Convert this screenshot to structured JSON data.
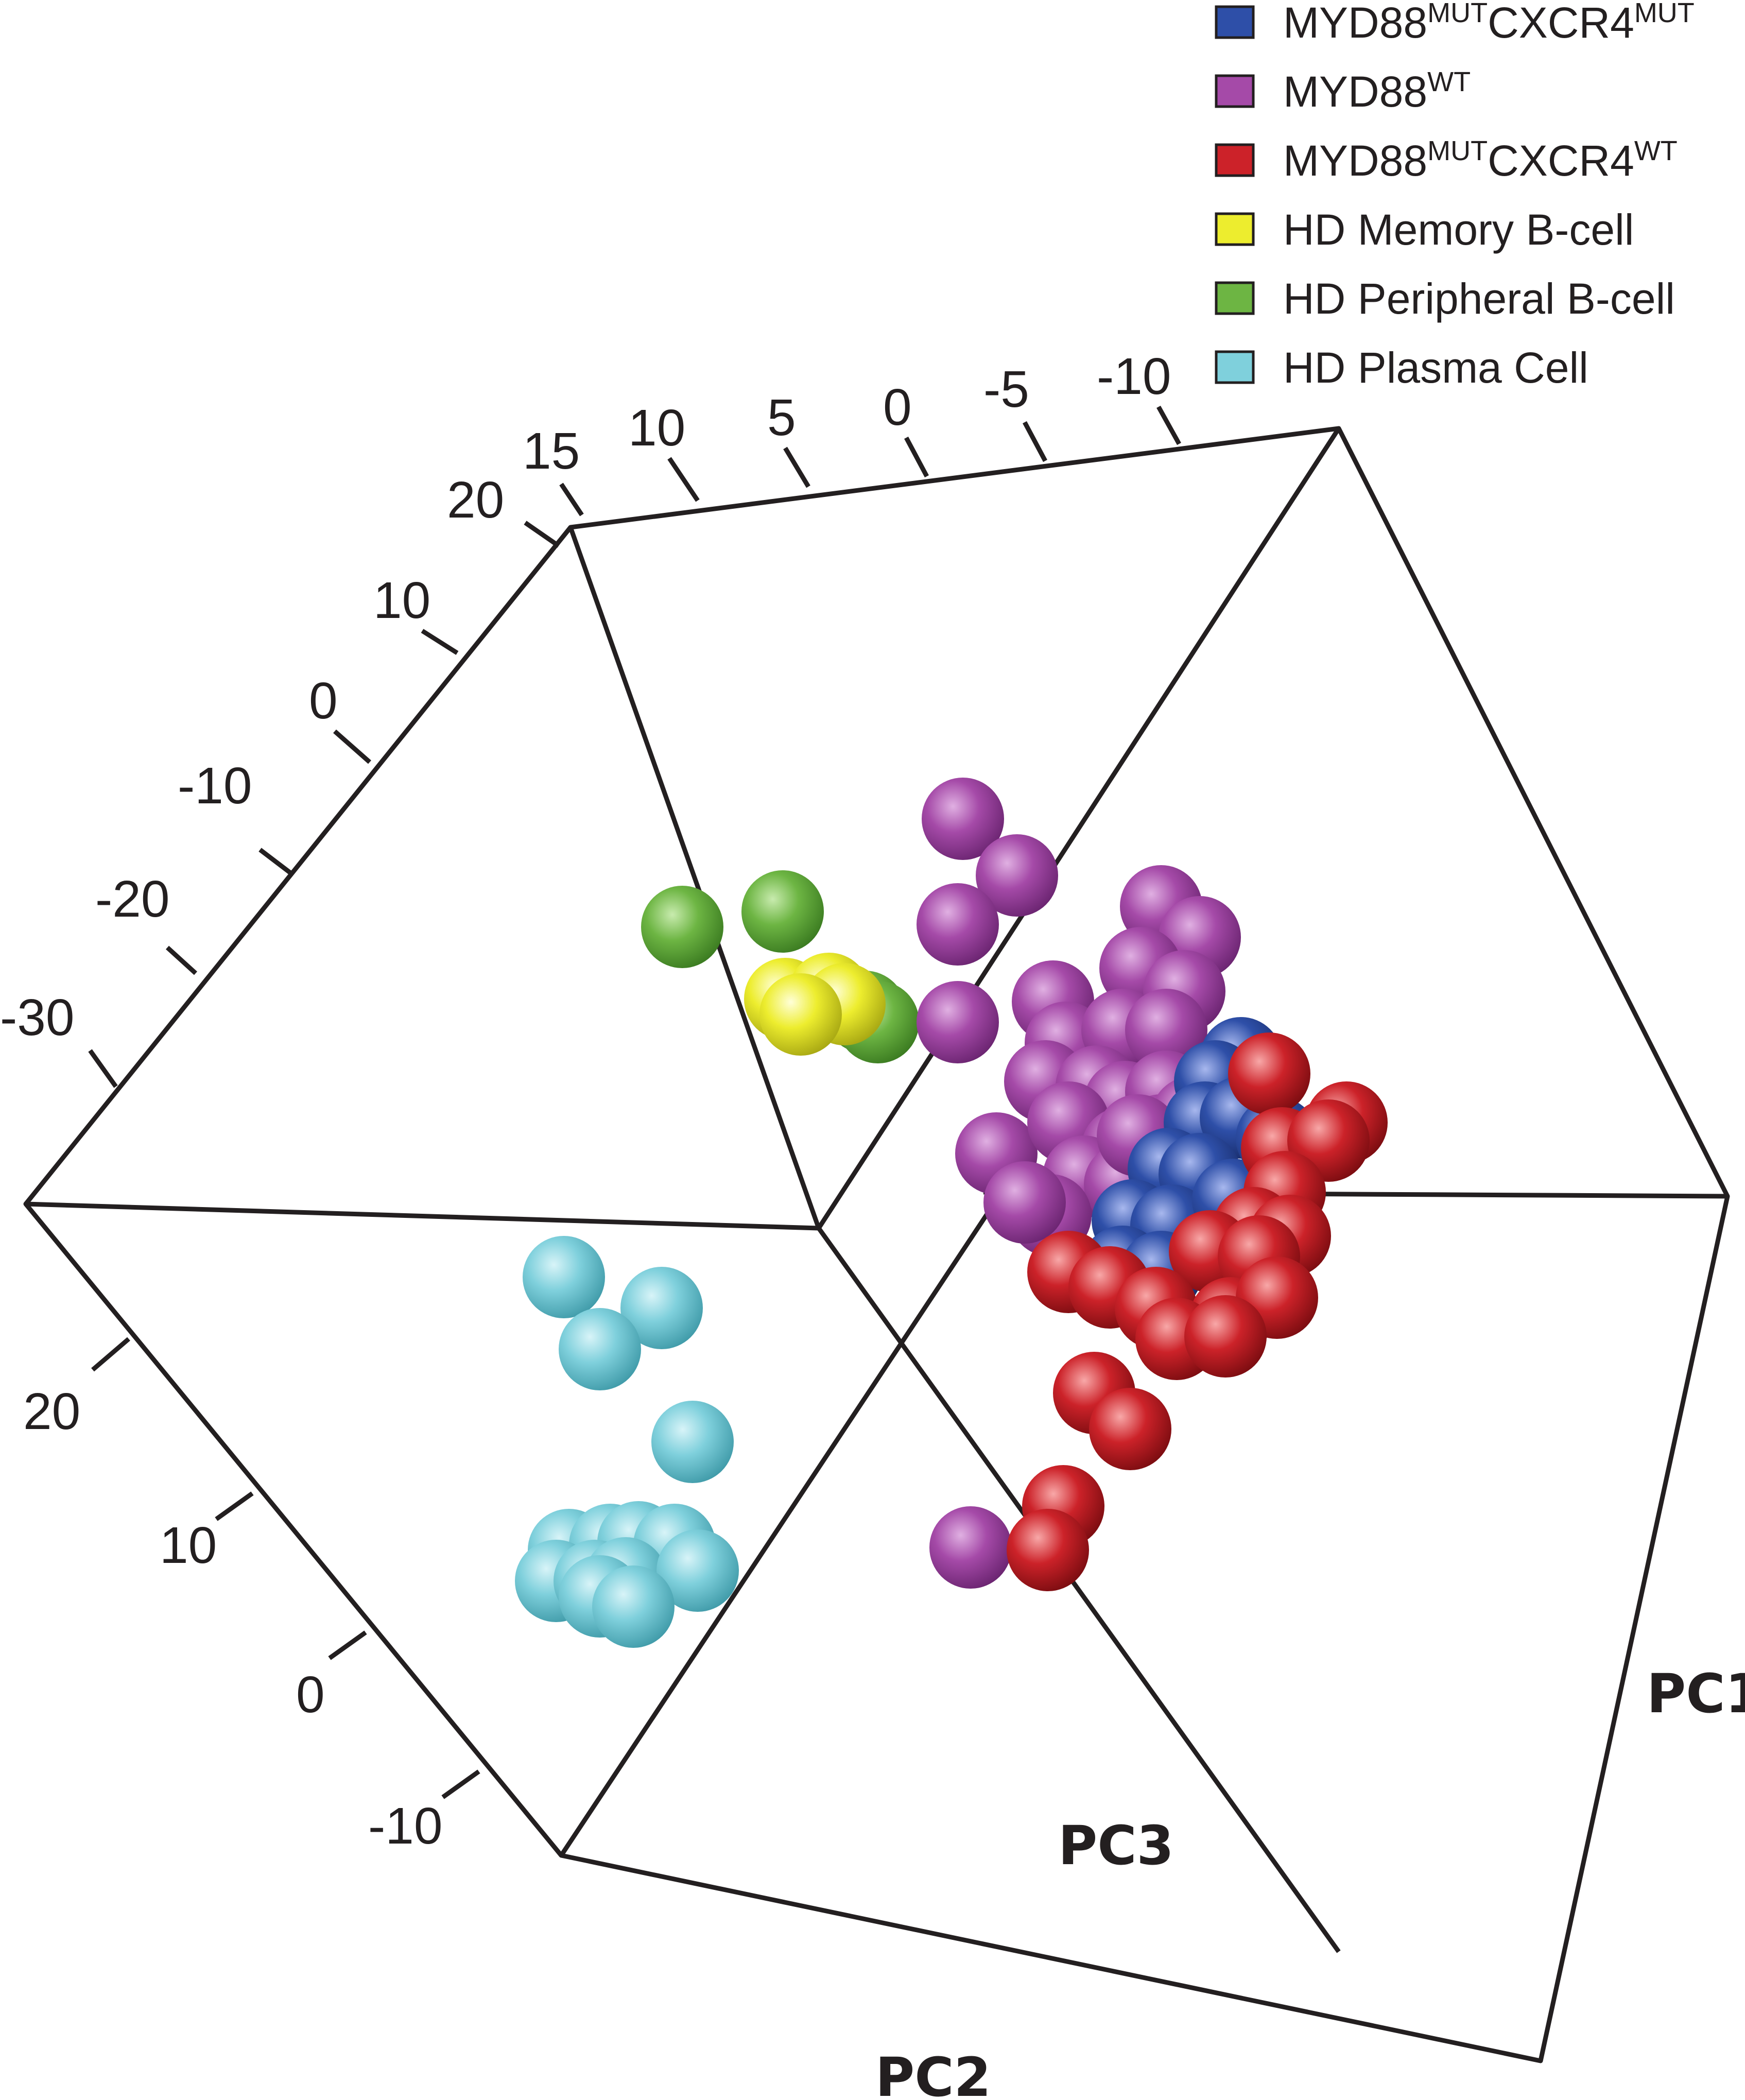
{
  "chart_data": {
    "type": "scatter",
    "subtype": "3d-pca-scatter",
    "axes": {
      "pc1": {
        "label": "PC1",
        "ticks": []
      },
      "pc2": {
        "label": "PC2",
        "ticks": [
          "-10",
          "0",
          "10",
          "20"
        ]
      },
      "pc3": {
        "label": "PC3",
        "ticks": []
      },
      "top_axis_ticks": [
        "15",
        "10",
        "5",
        "0",
        "-5",
        "-10"
      ],
      "left_axis_ticks": [
        "20",
        "10",
        "0",
        "-10",
        "-20",
        "-30"
      ]
    },
    "legend": {
      "placement": "top-right",
      "entries": [
        {
          "base": "MYD88",
          "sup1": "MUT",
          "mid": "CXCR4",
          "sup2": "MUT",
          "color": "#2e4fa8"
        },
        {
          "base": "MYD88",
          "sup1": "WT",
          "mid": "",
          "sup2": "",
          "color": "#a54aa8"
        },
        {
          "base": "MYD88",
          "sup1": "MUT",
          "mid": "CXCR4",
          "sup2": "WT",
          "color": "#cc2229"
        },
        {
          "base": "HD Memory B-cell",
          "sup1": "",
          "mid": "",
          "sup2": "",
          "color": "#eded2e"
        },
        {
          "base": "HD Peripheral B-cell",
          "sup1": "",
          "mid": "",
          "sup2": "",
          "color": "#6db543"
        },
        {
          "base": "HD Plasma Cell",
          "sup1": "",
          "mid": "",
          "sup2": "",
          "color": "#7fd0dc"
        }
      ]
    },
    "series": [
      {
        "name": "HD Plasma Cell",
        "color": "#7fd0dc",
        "count": 14
      },
      {
        "name": "HD Peripheral B-cell",
        "color": "#6db543",
        "count": 5
      },
      {
        "name": "HD Memory B-cell",
        "color": "#eded2e",
        "count": 4
      },
      {
        "name": "MYD88WT",
        "color": "#a54aa8",
        "count": 28
      },
      {
        "name": "MYD88MUTCXCR4MUT",
        "color": "#2e4fa8",
        "count": 12
      },
      {
        "name": "MYD88MUTCXCR4WT",
        "color": "#cc2229",
        "count": 20
      }
    ]
  }
}
